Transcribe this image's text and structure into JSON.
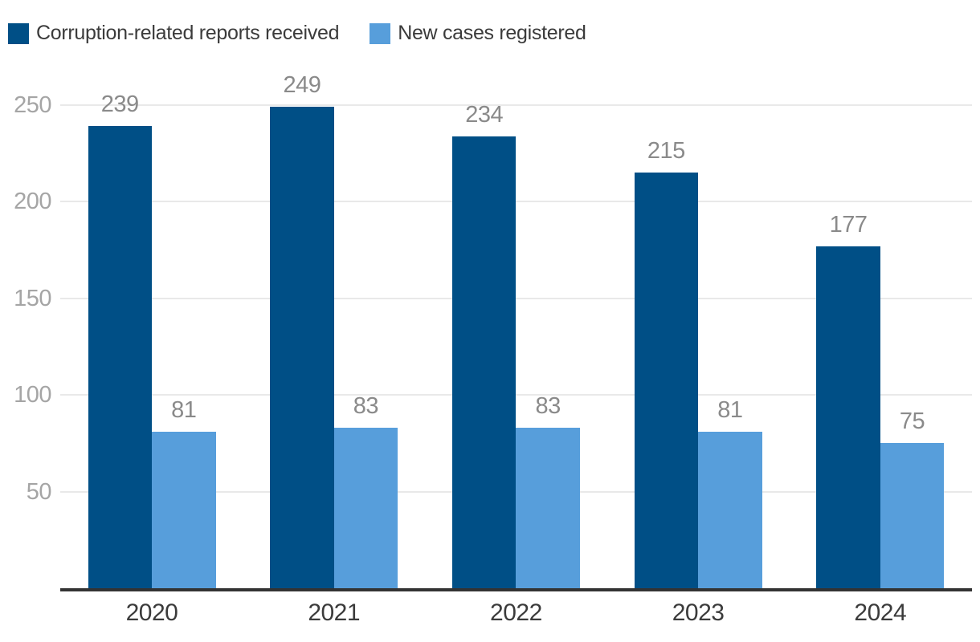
{
  "legend": {
    "items": [
      {
        "id": "reports",
        "label": "Corruption-related reports received",
        "color": "#004f86",
        "swatch_icon": "square"
      },
      {
        "id": "cases",
        "label": "New cases registered",
        "color": "#579edb",
        "swatch_icon": "square"
      }
    ]
  },
  "chart_data": {
    "type": "bar",
    "title": "",
    "categories": [
      "2020",
      "2021",
      "2022",
      "2023",
      "2024"
    ],
    "series": [
      {
        "id": "reports",
        "name": "Corruption-related reports received",
        "color": "#004f86",
        "values": [
          239,
          249,
          234,
          215,
          177
        ]
      },
      {
        "id": "cases",
        "name": "New cases registered",
        "color": "#579edb",
        "values": [
          81,
          83,
          83,
          81,
          75
        ]
      }
    ],
    "xlabel": "",
    "ylabel": "",
    "ylim": [
      0,
      250
    ],
    "yticks": [
      50,
      100,
      150,
      200,
      250
    ],
    "grid": true,
    "grid_orientation": "horizontal",
    "value_labels": true,
    "legend_position": "top-left",
    "bar_layout": "grouped-adjacent",
    "colors": {
      "background": "#ffffff",
      "grid": "#e9e9e9",
      "axis": "#333333",
      "tick_label": "#a5a5a5",
      "value_label": "#8a8a8a",
      "category_label": "#3b3b3b",
      "legend_text": "#3b3b3b"
    }
  }
}
